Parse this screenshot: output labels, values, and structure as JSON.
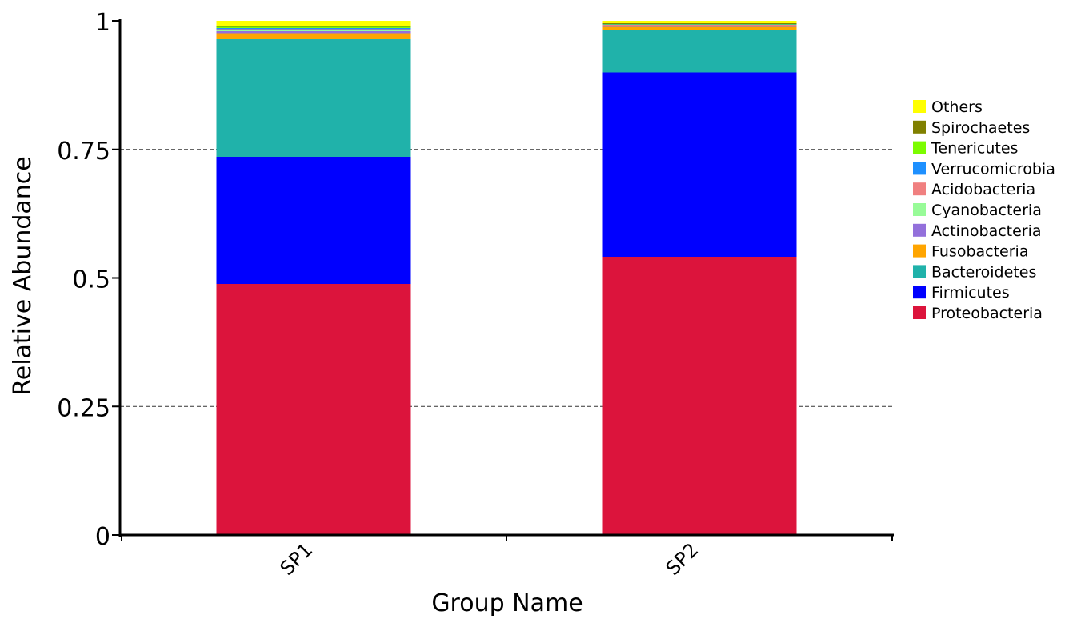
{
  "chart_data": {
    "type": "bar",
    "stacked": true,
    "categories": [
      "SP1",
      "SP2"
    ],
    "series": [
      {
        "name": "Proteobacteria",
        "color": "#DC143C",
        "values": [
          0.488,
          0.541
        ]
      },
      {
        "name": "Firmicutes",
        "color": "#0000FF",
        "values": [
          0.248,
          0.359
        ]
      },
      {
        "name": "Bacteroidetes",
        "color": "#20B2AA",
        "values": [
          0.228,
          0.083
        ]
      },
      {
        "name": "Fusobacteria",
        "color": "#FFA500",
        "values": [
          0.012,
          0.005
        ]
      },
      {
        "name": "Actinobacteria",
        "color": "#9370DB",
        "values": [
          0.004,
          0.002
        ]
      },
      {
        "name": "Cyanobacteria",
        "color": "#98FB98",
        "values": [
          0.002,
          0.001
        ]
      },
      {
        "name": "Acidobacteria",
        "color": "#F08080",
        "values": [
          0.002,
          0.001
        ]
      },
      {
        "name": "Verrucomicrobia",
        "color": "#1E90FF",
        "values": [
          0.002,
          0.001
        ]
      },
      {
        "name": "Tenericutes",
        "color": "#7CFC00",
        "values": [
          0.002,
          0.001
        ]
      },
      {
        "name": "Spirochaetes",
        "color": "#808000",
        "values": [
          0.002,
          0.001
        ]
      },
      {
        "name": "Others",
        "color": "#FFFF00",
        "values": [
          0.01,
          0.005
        ]
      }
    ],
    "xlabel": "Group Name",
    "ylabel": "Relative Abundance",
    "ylim": [
      0,
      1
    ],
    "yticks": [
      {
        "value": 0,
        "label": "0"
      },
      {
        "value": 0.25,
        "label": "0.25"
      },
      {
        "value": 0.5,
        "label": "0.5"
      },
      {
        "value": 0.75,
        "label": "0.75"
      },
      {
        "value": 1,
        "label": "1"
      }
    ],
    "grid": "dashed horizontal lines",
    "legend_position": "right",
    "legend_order": [
      "Others",
      "Spirochaetes",
      "Tenericutes",
      "Verrucomicrobia",
      "Acidobacteria",
      "Cyanobacteria",
      "Actinobacteria",
      "Fusobacteria",
      "Bacteroidetes",
      "Firmicutes",
      "Proteobacteria"
    ]
  }
}
